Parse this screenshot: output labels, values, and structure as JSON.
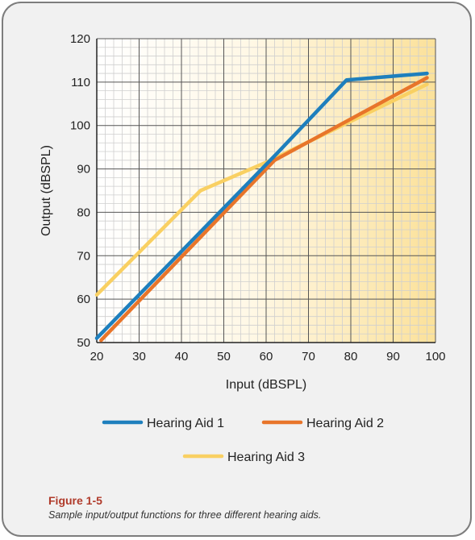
{
  "chart_data": {
    "type": "line",
    "xlabel": "Input (dBSPL)",
    "ylabel": "Output (dBSPL)",
    "xlim": [
      20,
      100
    ],
    "ylim": [
      50,
      120
    ],
    "xticks": [
      20,
      30,
      40,
      50,
      60,
      70,
      80,
      90,
      100
    ],
    "yticks": [
      50,
      60,
      70,
      80,
      90,
      100,
      110,
      120
    ],
    "grid": true,
    "legend_position": "bottom",
    "series": [
      {
        "name": "Hearing Aid 1",
        "color": "#1e7fbd",
        "points": [
          [
            20,
            51
          ],
          [
            62.5,
            93.5
          ],
          [
            79,
            110.5
          ],
          [
            98,
            112
          ]
        ]
      },
      {
        "name": "Hearing Aid 2",
        "color": "#e8752a",
        "points": [
          [
            21,
            50.5
          ],
          [
            62,
            92
          ],
          [
            98,
            111
          ]
        ]
      },
      {
        "name": "Hearing Aid 3",
        "color": "#f9d062",
        "points": [
          [
            20,
            61
          ],
          [
            44.5,
            85
          ],
          [
            60,
            91.5
          ],
          [
            98,
            109.5
          ]
        ]
      }
    ]
  },
  "caption": {
    "title": "Figure 1-5",
    "text": "Sample input/output functions for three different hearing aids."
  }
}
